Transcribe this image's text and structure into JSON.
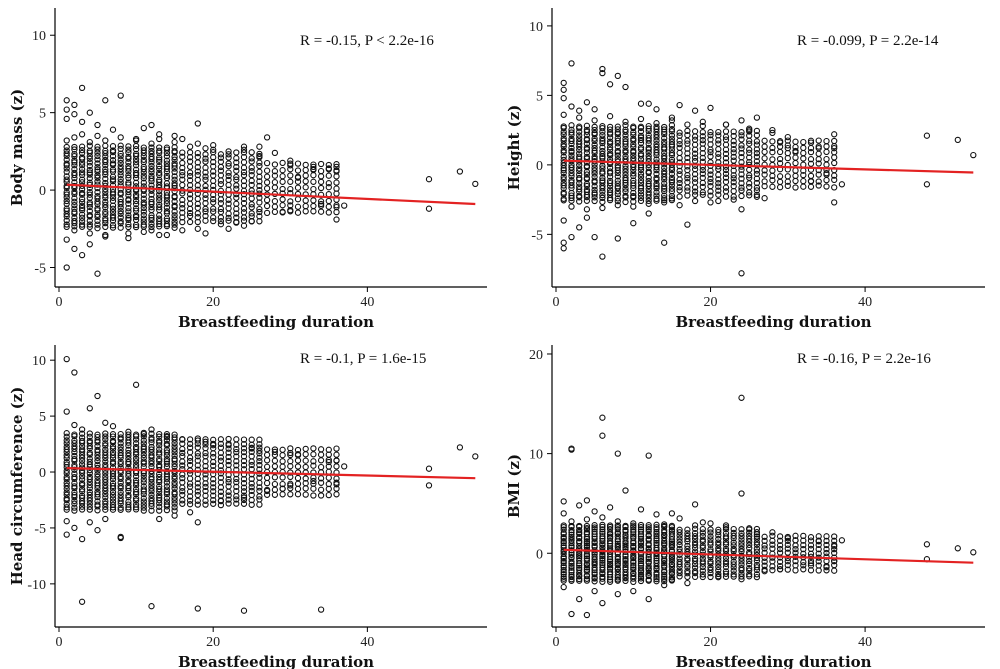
{
  "chart_data": [
    {
      "type": "scatter",
      "panel": "body-mass",
      "xlabel": "Breastfeeding duration",
      "ylabel": "Body mass (z)",
      "xlim": [
        0,
        55
      ],
      "ylim": [
        -6,
        11.5
      ],
      "xticks": [
        0,
        20,
        40
      ],
      "yticks": [
        -5,
        0,
        5,
        10
      ],
      "annotation": "R = -0.15, P < 2.2e-16",
      "fit_line": {
        "x": [
          1,
          54
        ],
        "y": [
          0.35,
          -0.9
        ]
      },
      "cluster": {
        "x_max": 36,
        "y_low": -2.4,
        "y_high": 2.8
      },
      "points": {
        "x": [
          1,
          1,
          1,
          1,
          1,
          2,
          2,
          2,
          3,
          3,
          3,
          4,
          4,
          5,
          5,
          6,
          6,
          7,
          8,
          9,
          10,
          11,
          12,
          12,
          13,
          14,
          15,
          16,
          17,
          18,
          18,
          19,
          20,
          21,
          22,
          23,
          24,
          24,
          25,
          26,
          27,
          28,
          29,
          30,
          30,
          31,
          33,
          34,
          35,
          36,
          36,
          36,
          37,
          48,
          48,
          52,
          54,
          1,
          2,
          3,
          4,
          5,
          6,
          8,
          10,
          12,
          13,
          15,
          18,
          20,
          24,
          26,
          30,
          33,
          36,
          2,
          4,
          6,
          9,
          11,
          13,
          16,
          19,
          22
        ],
        "y": [
          5.8,
          5.2,
          4.6,
          -3.2,
          -5.0,
          5.5,
          4.9,
          -3.8,
          6.6,
          4.4,
          -4.2,
          5.0,
          -3.5,
          4.2,
          -5.4,
          5.8,
          -2.9,
          3.9,
          6.1,
          -3.1,
          3.3,
          4.0,
          -2.6,
          4.2,
          3.6,
          -2.9,
          3.5,
          3.3,
          2.8,
          4.3,
          -2.5,
          2.7,
          2.6,
          -2.2,
          2.5,
          -2.1,
          2.6,
          -2.3,
          -2.0,
          2.2,
          3.4,
          2.4,
          -1.4,
          1.6,
          -1.3,
          0.8,
          1.3,
          -0.9,
          1.4,
          -1.9,
          1.5,
          -1.1,
          -1.0,
          0.7,
          -1.2,
          1.2,
          0.4,
          3.2,
          3.4,
          3.6,
          3.1,
          3.5,
          3.2,
          3.4,
          3.2,
          3.0,
          3.3,
          3.1,
          3.0,
          2.9,
          2.8,
          2.8,
          1.9,
          1.5,
          1.2,
          -2.6,
          -2.8,
          -3.0,
          -2.8,
          -2.7,
          -2.9,
          -2.6,
          -2.8,
          -2.5
        ]
      }
    },
    {
      "type": "scatter",
      "panel": "height",
      "xlabel": "Breastfeeding duration",
      "ylabel": "Height (z)",
      "xlim": [
        0,
        55
      ],
      "ylim": [
        -8.5,
        11
      ],
      "xticks": [
        0,
        20,
        40
      ],
      "yticks": [
        -5,
        0,
        5,
        10
      ],
      "annotation": "R = -0.099, P = 2.2e-14",
      "fit_line": {
        "x": [
          1,
          54
        ],
        "y": [
          0.3,
          -0.55
        ]
      },
      "cluster": {
        "x_max": 36,
        "y_low": -2.6,
        "y_high": 2.8
      },
      "points": {
        "x": [
          1,
          1,
          1,
          1,
          1,
          1,
          2,
          2,
          2,
          3,
          3,
          4,
          4,
          5,
          5,
          6,
          6,
          6,
          7,
          8,
          8,
          9,
          10,
          11,
          12,
          12,
          13,
          14,
          15,
          16,
          17,
          18,
          19,
          20,
          21,
          22,
          24,
          24,
          24,
          25,
          26,
          27,
          28,
          29,
          30,
          31,
          33,
          34,
          35,
          36,
          36,
          37,
          48,
          48,
          52,
          54,
          1,
          3,
          5,
          7,
          9,
          11,
          13,
          15,
          17,
          19,
          22,
          25,
          28,
          30,
          33,
          36,
          2,
          4,
          6,
          8,
          10,
          12,
          14,
          16,
          18,
          20,
          23,
          26
        ],
        "y": [
          5.9,
          5.4,
          4.8,
          -4.0,
          -5.6,
          -6.0,
          7.3,
          -5.2,
          4.2,
          3.9,
          -4.5,
          4.5,
          -3.8,
          4.0,
          -5.2,
          6.9,
          6.6,
          -6.6,
          5.8,
          6.4,
          -5.3,
          5.6,
          -4.2,
          4.4,
          -3.5,
          4.4,
          4.0,
          -5.6,
          3.4,
          4.3,
          -4.3,
          3.9,
          3.1,
          4.1,
          -2.6,
          2.9,
          3.2,
          -3.2,
          -7.8,
          2.6,
          3.4,
          -2.4,
          2.5,
          1.7,
          1.4,
          1.0,
          -1.2,
          1.2,
          -0.6,
          -2.7,
          2.2,
          -1.4,
          2.1,
          -1.4,
          1.8,
          0.7,
          3.6,
          3.4,
          3.2,
          3.5,
          3.1,
          3.3,
          3.0,
          3.2,
          2.9,
          2.8,
          2.9,
          2.5,
          2.3,
          2.0,
          1.6,
          1.2,
          -3.0,
          -3.2,
          -3.1,
          -2.9,
          -3.0,
          -2.8,
          -2.7,
          -2.9,
          -2.6,
          -2.7,
          -2.5,
          -2.3
        ]
      }
    },
    {
      "type": "scatter",
      "panel": "head-circumference",
      "xlabel": "Breastfeeding duration",
      "ylabel": "Head circumference (z)",
      "xlim": [
        0,
        55
      ],
      "ylim": [
        -13.5,
        11
      ],
      "xticks": [
        0,
        20,
        40
      ],
      "yticks": [
        -10,
        -5,
        0,
        5,
        10
      ],
      "annotation": "R = -0.1, P = 1.6e-15",
      "fit_line": {
        "x": [
          1,
          54
        ],
        "y": [
          0.35,
          -0.55
        ]
      },
      "cluster": {
        "x_max": 36,
        "y_low": -3.4,
        "y_high": 3.4
      },
      "points": {
        "x": [
          1,
          1,
          1,
          1,
          2,
          2,
          2,
          3,
          3,
          4,
          4,
          5,
          5,
          6,
          6,
          7,
          8,
          9,
          10,
          11,
          12,
          12,
          13,
          14,
          15,
          16,
          17,
          18,
          18,
          18,
          19,
          20,
          21,
          22,
          24,
          24,
          25,
          26,
          27,
          28,
          29,
          30,
          30,
          31,
          33,
          34,
          35,
          36,
          36,
          37,
          48,
          48,
          52,
          54,
          3,
          8
        ],
        "y": [
          10.1,
          5.4,
          -4.4,
          -5.6,
          8.9,
          4.2,
          -5.0,
          -11.6,
          3.8,
          5.7,
          -4.5,
          6.8,
          -5.2,
          4.4,
          -4.2,
          4.1,
          -5.8,
          3.6,
          7.8,
          3.5,
          -12.0,
          3.8,
          -4.2,
          3.2,
          -3.9,
          2.9,
          -3.6,
          3.0,
          -4.5,
          -12.2,
          2.7,
          2.4,
          -2.6,
          2.4,
          -2.3,
          -12.4,
          2.1,
          1.9,
          -1.7,
          1.8,
          -1.5,
          1.7,
          -1.2,
          1.5,
          -0.8,
          -12.3,
          0.9,
          -1.1,
          1.0,
          0.5,
          0.3,
          -1.2,
          2.2,
          1.4,
          -6.0,
          -5.9
        ]
      }
    },
    {
      "type": "scatter",
      "panel": "bmi",
      "xlabel": "Breastfeeding duration",
      "ylabel": "BMI (z)",
      "xlim": [
        0,
        55
      ],
      "ylim": [
        -7,
        20.5
      ],
      "xticks": [
        0,
        20,
        40
      ],
      "yticks": [
        0,
        10,
        20
      ],
      "annotation": "R = -0.16, P = 2.2e-16",
      "fit_line": {
        "x": [
          1,
          54
        ],
        "y": [
          0.35,
          -0.95
        ]
      },
      "cluster": {
        "x_max": 36,
        "y_low": -2.8,
        "y_high": 2.8
      },
      "points": {
        "x": [
          1,
          1,
          1,
          2,
          2,
          2,
          3,
          3,
          4,
          4,
          5,
          5,
          6,
          6,
          6,
          7,
          8,
          8,
          9,
          10,
          11,
          12,
          12,
          13,
          14,
          15,
          16,
          17,
          18,
          19,
          20,
          21,
          22,
          24,
          24,
          24,
          25,
          26,
          27,
          28,
          29,
          30,
          31,
          33,
          34,
          35,
          36,
          36,
          37,
          48,
          48,
          52,
          54,
          2,
          4,
          6,
          8,
          10,
          14,
          18,
          22
        ],
        "y": [
          5.2,
          4.0,
          -3.4,
          10.5,
          10.4,
          -6.1,
          4.8,
          -4.6,
          5.3,
          -6.2,
          4.2,
          -3.8,
          13.6,
          11.8,
          -5.0,
          4.6,
          10.0,
          -4.1,
          6.3,
          -3.8,
          4.4,
          9.8,
          -4.6,
          3.9,
          -3.2,
          4.0,
          3.5,
          -3.0,
          4.9,
          3.1,
          3.0,
          -2.4,
          2.8,
          15.6,
          6.0,
          -2.6,
          2.5,
          1.9,
          -1.8,
          2.1,
          -1.6,
          1.5,
          1.3,
          -1.0,
          1.2,
          -1.4,
          -0.8,
          0.7,
          1.3,
          0.9,
          -0.6,
          0.5,
          0.1,
          3.2,
          3.4,
          3.6,
          3.2,
          3.0,
          2.9,
          2.8,
          2.6
        ]
      }
    }
  ]
}
